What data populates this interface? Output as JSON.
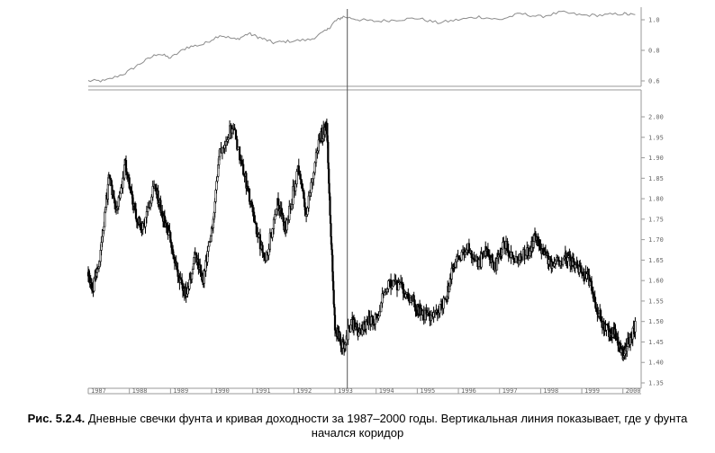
{
  "caption": {
    "label": "Рис. 5.2.4.",
    "text": "Дневные свечки фунта и кривая доходности за 1987–2000 годы. Вертикальная линия показывает, где у фунта начался коридор"
  },
  "chart_data": [
    {
      "type": "line",
      "panel": "top",
      "yticks": [
        "1.0",
        "0.8",
        "0.6"
      ],
      "ylim": [
        0.6,
        1.0
      ],
      "color": "#8c8c8c",
      "x": [
        1987.0,
        1987.4,
        1987.9,
        1988.3,
        1988.7,
        1989.0,
        1989.4,
        1989.8,
        1990.2,
        1990.6,
        1990.9,
        1991.2,
        1991.5,
        1991.9,
        1992.4,
        1992.8,
        1993.0,
        1993.2,
        1993.6,
        1994.0,
        1994.5,
        1995.0,
        1995.5,
        1996.0,
        1996.5,
        1997.0,
        1997.5,
        1998.0,
        1998.5,
        1999.0,
        1999.5,
        2000.0,
        2000.3
      ],
      "y": [
        0.6,
        0.6,
        0.65,
        0.72,
        0.78,
        0.75,
        0.82,
        0.84,
        0.9,
        0.87,
        0.91,
        0.88,
        0.85,
        0.86,
        0.87,
        0.93,
        0.99,
        1.02,
        1.0,
        0.99,
        1.0,
        1.01,
        0.98,
        1.0,
        1.02,
        1.0,
        1.04,
        1.02,
        1.05,
        1.03,
        1.03,
        1.04,
        1.03
      ]
    },
    {
      "type": "candlestick",
      "panel": "bottom",
      "yticks": [
        "2.00",
        "1.95",
        "1.90",
        "1.85",
        "1.80",
        "1.75",
        "1.70",
        "1.65",
        "1.60",
        "1.55",
        "1.50",
        "1.45",
        "1.40",
        "1.35"
      ],
      "ylim": [
        1.35,
        2.0
      ],
      "xticks": [
        "1987",
        "1988",
        "1989",
        "1990",
        "1991",
        "1992",
        "1993",
        "1994",
        "1995",
        "1996",
        "1997",
        "1998",
        "1999",
        "2000"
      ],
      "xlim": [
        1987.0,
        2000.4
      ],
      "grid": false,
      "marker_line_x": 1993.3,
      "color": "#000000",
      "x": [
        1987.0,
        1987.1,
        1987.3,
        1987.5,
        1987.7,
        1987.9,
        1988.1,
        1988.3,
        1988.6,
        1988.8,
        1989.0,
        1989.2,
        1989.4,
        1989.6,
        1989.8,
        1990.0,
        1990.2,
        1990.5,
        1990.8,
        1991.0,
        1991.3,
        1991.6,
        1991.8,
        1992.1,
        1992.3,
        1992.6,
        1992.8,
        1992.9,
        1993.0,
        1993.2,
        1993.4,
        1993.6,
        1993.8,
        1994.0,
        1994.3,
        1994.6,
        1994.9,
        1995.1,
        1995.4,
        1995.7,
        1995.9,
        1996.2,
        1996.5,
        1996.7,
        1996.9,
        1997.1,
        1997.4,
        1997.7,
        1997.9,
        1998.1,
        1998.3,
        1998.6,
        1998.8,
        1999.0,
        1999.2,
        1999.4,
        1999.6,
        1999.8,
        2000.0,
        2000.1,
        2000.3
      ],
      "y": [
        1.62,
        1.58,
        1.66,
        1.85,
        1.78,
        1.88,
        1.78,
        1.72,
        1.84,
        1.76,
        1.7,
        1.6,
        1.56,
        1.66,
        1.6,
        1.72,
        1.92,
        1.98,
        1.86,
        1.76,
        1.64,
        1.8,
        1.72,
        1.88,
        1.76,
        1.94,
        1.98,
        1.72,
        1.48,
        1.44,
        1.5,
        1.47,
        1.5,
        1.51,
        1.6,
        1.58,
        1.55,
        1.52,
        1.51,
        1.56,
        1.64,
        1.68,
        1.64,
        1.68,
        1.63,
        1.69,
        1.65,
        1.67,
        1.71,
        1.66,
        1.64,
        1.66,
        1.64,
        1.62,
        1.6,
        1.52,
        1.48,
        1.47,
        1.42,
        1.44,
        1.49
      ]
    }
  ]
}
